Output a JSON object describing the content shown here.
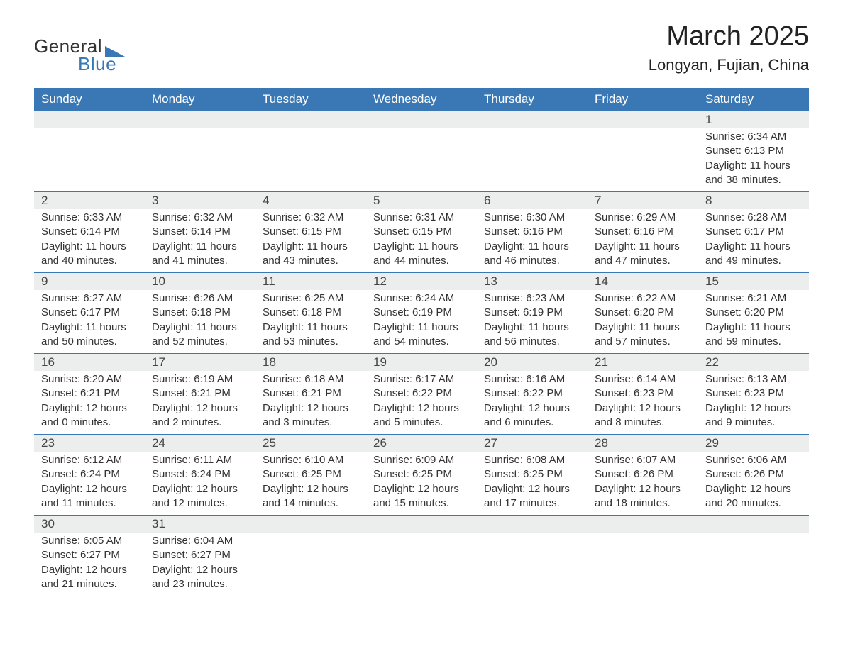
{
  "logo": {
    "word1": "General",
    "word2": "Blue",
    "brand_color": "#3a78b5",
    "text_color": "#333333"
  },
  "title": {
    "month": "March 2025",
    "location": "Longyan, Fujian, China"
  },
  "calendar": {
    "header_bg": "#3a78b5",
    "header_fg": "#ffffff",
    "row_sep_color": "#3a78b5",
    "daynum_bg": "#eceded",
    "columns": [
      "Sunday",
      "Monday",
      "Tuesday",
      "Wednesday",
      "Thursday",
      "Friday",
      "Saturday"
    ],
    "weeks": [
      [
        null,
        null,
        null,
        null,
        null,
        null,
        {
          "n": "1",
          "sunrise": "Sunrise: 6:34 AM",
          "sunset": "Sunset: 6:13 PM",
          "daylight": "Daylight: 11 hours and 38 minutes."
        }
      ],
      [
        {
          "n": "2",
          "sunrise": "Sunrise: 6:33 AM",
          "sunset": "Sunset: 6:14 PM",
          "daylight": "Daylight: 11 hours and 40 minutes."
        },
        {
          "n": "3",
          "sunrise": "Sunrise: 6:32 AM",
          "sunset": "Sunset: 6:14 PM",
          "daylight": "Daylight: 11 hours and 41 minutes."
        },
        {
          "n": "4",
          "sunrise": "Sunrise: 6:32 AM",
          "sunset": "Sunset: 6:15 PM",
          "daylight": "Daylight: 11 hours and 43 minutes."
        },
        {
          "n": "5",
          "sunrise": "Sunrise: 6:31 AM",
          "sunset": "Sunset: 6:15 PM",
          "daylight": "Daylight: 11 hours and 44 minutes."
        },
        {
          "n": "6",
          "sunrise": "Sunrise: 6:30 AM",
          "sunset": "Sunset: 6:16 PM",
          "daylight": "Daylight: 11 hours and 46 minutes."
        },
        {
          "n": "7",
          "sunrise": "Sunrise: 6:29 AM",
          "sunset": "Sunset: 6:16 PM",
          "daylight": "Daylight: 11 hours and 47 minutes."
        },
        {
          "n": "8",
          "sunrise": "Sunrise: 6:28 AM",
          "sunset": "Sunset: 6:17 PM",
          "daylight": "Daylight: 11 hours and 49 minutes."
        }
      ],
      [
        {
          "n": "9",
          "sunrise": "Sunrise: 6:27 AM",
          "sunset": "Sunset: 6:17 PM",
          "daylight": "Daylight: 11 hours and 50 minutes."
        },
        {
          "n": "10",
          "sunrise": "Sunrise: 6:26 AM",
          "sunset": "Sunset: 6:18 PM",
          "daylight": "Daylight: 11 hours and 52 minutes."
        },
        {
          "n": "11",
          "sunrise": "Sunrise: 6:25 AM",
          "sunset": "Sunset: 6:18 PM",
          "daylight": "Daylight: 11 hours and 53 minutes."
        },
        {
          "n": "12",
          "sunrise": "Sunrise: 6:24 AM",
          "sunset": "Sunset: 6:19 PM",
          "daylight": "Daylight: 11 hours and 54 minutes."
        },
        {
          "n": "13",
          "sunrise": "Sunrise: 6:23 AM",
          "sunset": "Sunset: 6:19 PM",
          "daylight": "Daylight: 11 hours and 56 minutes."
        },
        {
          "n": "14",
          "sunrise": "Sunrise: 6:22 AM",
          "sunset": "Sunset: 6:20 PM",
          "daylight": "Daylight: 11 hours and 57 minutes."
        },
        {
          "n": "15",
          "sunrise": "Sunrise: 6:21 AM",
          "sunset": "Sunset: 6:20 PM",
          "daylight": "Daylight: 11 hours and 59 minutes."
        }
      ],
      [
        {
          "n": "16",
          "sunrise": "Sunrise: 6:20 AM",
          "sunset": "Sunset: 6:21 PM",
          "daylight": "Daylight: 12 hours and 0 minutes."
        },
        {
          "n": "17",
          "sunrise": "Sunrise: 6:19 AM",
          "sunset": "Sunset: 6:21 PM",
          "daylight": "Daylight: 12 hours and 2 minutes."
        },
        {
          "n": "18",
          "sunrise": "Sunrise: 6:18 AM",
          "sunset": "Sunset: 6:21 PM",
          "daylight": "Daylight: 12 hours and 3 minutes."
        },
        {
          "n": "19",
          "sunrise": "Sunrise: 6:17 AM",
          "sunset": "Sunset: 6:22 PM",
          "daylight": "Daylight: 12 hours and 5 minutes."
        },
        {
          "n": "20",
          "sunrise": "Sunrise: 6:16 AM",
          "sunset": "Sunset: 6:22 PM",
          "daylight": "Daylight: 12 hours and 6 minutes."
        },
        {
          "n": "21",
          "sunrise": "Sunrise: 6:14 AM",
          "sunset": "Sunset: 6:23 PM",
          "daylight": "Daylight: 12 hours and 8 minutes."
        },
        {
          "n": "22",
          "sunrise": "Sunrise: 6:13 AM",
          "sunset": "Sunset: 6:23 PM",
          "daylight": "Daylight: 12 hours and 9 minutes."
        }
      ],
      [
        {
          "n": "23",
          "sunrise": "Sunrise: 6:12 AM",
          "sunset": "Sunset: 6:24 PM",
          "daylight": "Daylight: 12 hours and 11 minutes."
        },
        {
          "n": "24",
          "sunrise": "Sunrise: 6:11 AM",
          "sunset": "Sunset: 6:24 PM",
          "daylight": "Daylight: 12 hours and 12 minutes."
        },
        {
          "n": "25",
          "sunrise": "Sunrise: 6:10 AM",
          "sunset": "Sunset: 6:25 PM",
          "daylight": "Daylight: 12 hours and 14 minutes."
        },
        {
          "n": "26",
          "sunrise": "Sunrise: 6:09 AM",
          "sunset": "Sunset: 6:25 PM",
          "daylight": "Daylight: 12 hours and 15 minutes."
        },
        {
          "n": "27",
          "sunrise": "Sunrise: 6:08 AM",
          "sunset": "Sunset: 6:25 PM",
          "daylight": "Daylight: 12 hours and 17 minutes."
        },
        {
          "n": "28",
          "sunrise": "Sunrise: 6:07 AM",
          "sunset": "Sunset: 6:26 PM",
          "daylight": "Daylight: 12 hours and 18 minutes."
        },
        {
          "n": "29",
          "sunrise": "Sunrise: 6:06 AM",
          "sunset": "Sunset: 6:26 PM",
          "daylight": "Daylight: 12 hours and 20 minutes."
        }
      ],
      [
        {
          "n": "30",
          "sunrise": "Sunrise: 6:05 AM",
          "sunset": "Sunset: 6:27 PM",
          "daylight": "Daylight: 12 hours and 21 minutes."
        },
        {
          "n": "31",
          "sunrise": "Sunrise: 6:04 AM",
          "sunset": "Sunset: 6:27 PM",
          "daylight": "Daylight: 12 hours and 23 minutes."
        },
        null,
        null,
        null,
        null,
        null
      ]
    ]
  }
}
